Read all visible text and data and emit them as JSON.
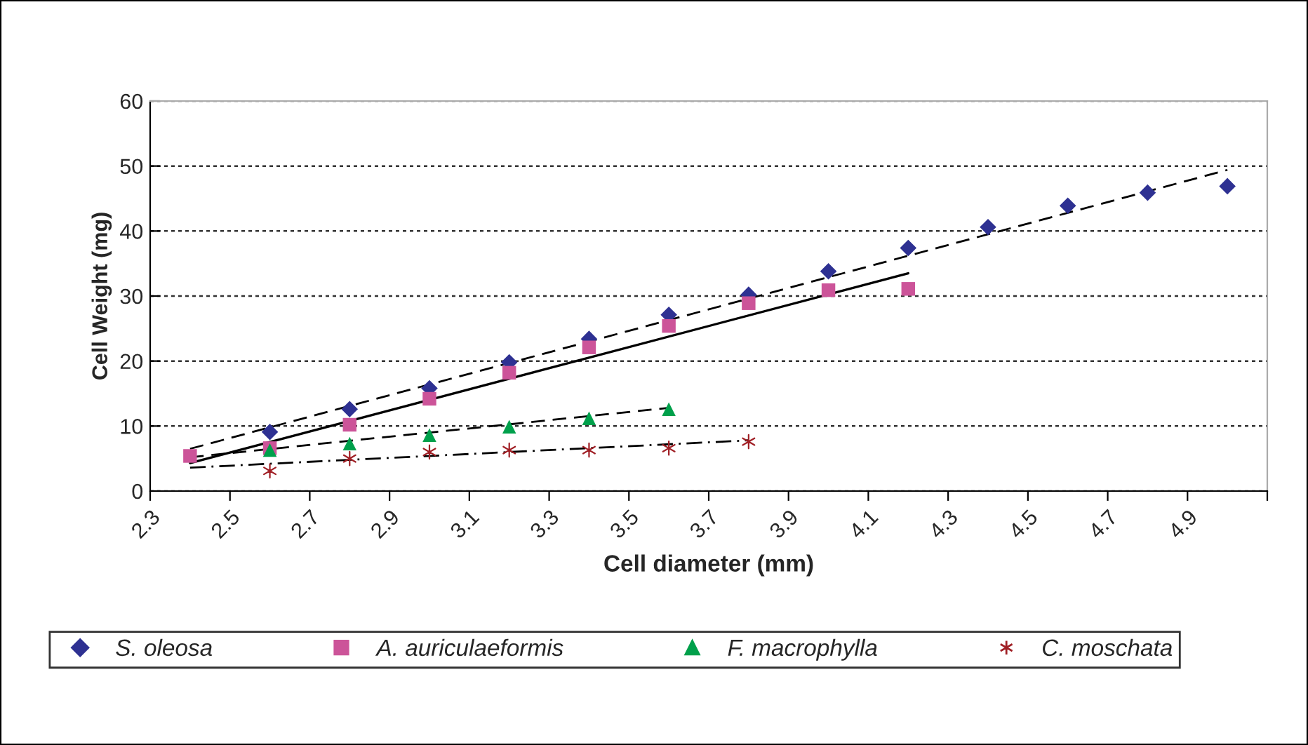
{
  "chart_data": {
    "type": "scatter",
    "xlabel": "Cell diameter (mm)",
    "ylabel": "Cell Weight (mg)",
    "xlim": [
      2.3,
      5.1
    ],
    "xticks": [
      2.3,
      2.5,
      2.7,
      2.9,
      3.1,
      3.3,
      3.5,
      3.7,
      3.9,
      4.1,
      4.3,
      4.5,
      4.7,
      4.9,
      {
        "value": 5.1,
        "label": null
      }
    ],
    "ylim": [
      0,
      60
    ],
    "yticks": [
      0,
      10,
      20,
      30,
      40,
      50,
      60
    ],
    "grid": "y",
    "legend": "bottom",
    "series": [
      {
        "name": "S. oleosa",
        "color": "#2e3192",
        "marker": "diamond",
        "x": [
          2.6,
          2.8,
          3.0,
          3.2,
          3.4,
          3.6,
          3.8,
          4.0,
          4.2,
          4.4,
          4.6,
          4.8,
          5.0
        ],
        "values": [
          9.1,
          12.6,
          15.8,
          19.8,
          23.4,
          27.1,
          30.2,
          33.8,
          37.4,
          40.6,
          43.9,
          45.9,
          46.9
        ]
      },
      {
        "name": "A. auriculaeformis",
        "color": "#cc5499",
        "marker": "square",
        "x": [
          2.4,
          2.6,
          2.8,
          3.0,
          3.2,
          3.4,
          3.6,
          3.8,
          4.0,
          4.2
        ],
        "values": [
          5.4,
          6.6,
          10.2,
          14.2,
          18.2,
          22.1,
          25.4,
          28.9,
          30.9,
          31.1
        ]
      },
      {
        "name": "F. macrophylla",
        "color": "#00a04b",
        "marker": "triangle",
        "x": [
          2.6,
          2.8,
          3.0,
          3.2,
          3.4,
          3.6
        ],
        "values": [
          6.3,
          7.3,
          8.6,
          9.9,
          11.2,
          12.6
        ]
      },
      {
        "name": "C. moschata",
        "color": "#a01f25",
        "marker": "cross",
        "x": [
          2.6,
          2.8,
          3.0,
          3.2,
          3.4,
          3.6,
          3.8
        ],
        "values": [
          3.1,
          5.0,
          6.0,
          6.3,
          6.3,
          6.6,
          7.6
        ]
      },
      {
        "type": "line",
        "color": "#000000",
        "line_style": "dashed",
        "x": [
          2.4,
          5.0
        ],
        "values": [
          6.5,
          49.4
        ]
      },
      {
        "type": "line",
        "color": "#000000",
        "line_style": "solid",
        "x": [
          2.4,
          4.2
        ],
        "values": [
          4.3,
          33.5
        ]
      },
      {
        "type": "line",
        "color": "#000000",
        "line_style": "dashed",
        "x": [
          2.4,
          3.6
        ],
        "values": [
          5.2,
          12.8
        ]
      },
      {
        "type": "line",
        "color": "#000000",
        "line_style": "dashdot",
        "x": [
          2.4,
          3.8
        ],
        "values": [
          3.6,
          7.8
        ]
      }
    ]
  }
}
